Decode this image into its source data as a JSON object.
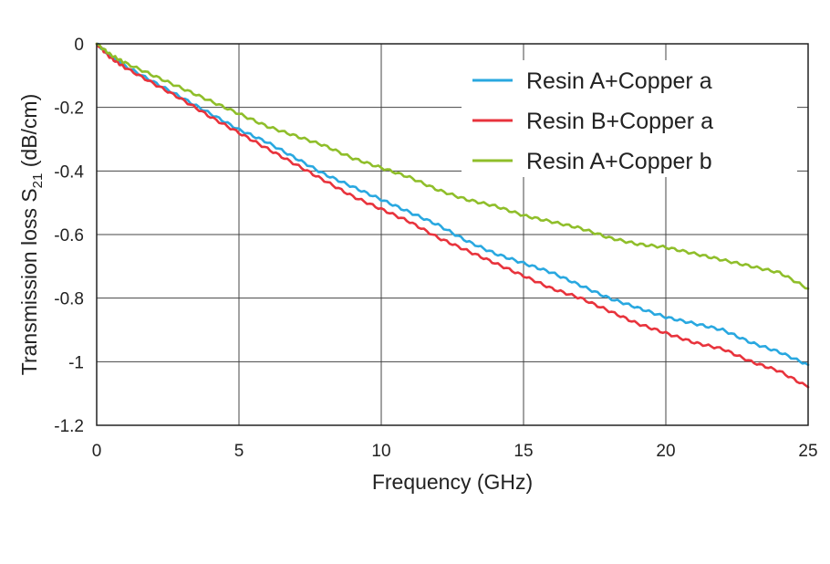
{
  "chart_data": {
    "type": "line",
    "xlabel": "Frequency (GHz)",
    "ylabel": {
      "main": "Transmission loss S",
      "sub": "21",
      "unit": " (dB/cm)"
    },
    "xlim": [
      0,
      25
    ],
    "ylim": [
      -1.2,
      0
    ],
    "xticks": [
      0,
      5,
      10,
      15,
      20,
      25
    ],
    "xtick_labels": [
      "0",
      "5",
      "10",
      "15",
      "20",
      "25"
    ],
    "yticks": [
      0,
      -0.2,
      -0.4,
      -0.6,
      -0.8,
      -1,
      -1.2
    ],
    "ytick_labels": [
      "0",
      "-0.2",
      "-0.4",
      "-0.6",
      "-0.8",
      "-1",
      "-1.2"
    ],
    "grid": true,
    "legend_position": "top-right",
    "series": [
      {
        "name": "Resin A+Copper a",
        "color": "#29a8e0",
        "x": [
          0,
          0.5,
          1,
          2,
          3,
          4,
          5,
          6,
          7,
          8,
          9,
          10,
          11,
          12,
          13,
          14,
          15,
          16,
          17,
          18,
          19,
          20,
          21,
          22,
          23,
          24,
          25
        ],
        "y": [
          0,
          -0.04,
          -0.07,
          -0.12,
          -0.17,
          -0.22,
          -0.27,
          -0.31,
          -0.36,
          -0.41,
          -0.45,
          -0.49,
          -0.53,
          -0.57,
          -0.62,
          -0.66,
          -0.69,
          -0.72,
          -0.76,
          -0.8,
          -0.83,
          -0.86,
          -0.88,
          -0.9,
          -0.94,
          -0.97,
          -1.01
        ]
      },
      {
        "name": "Resin B+Copper a",
        "color": "#e8333c",
        "x": [
          0,
          0.5,
          1,
          2,
          3,
          4,
          5,
          6,
          7,
          8,
          9,
          10,
          11,
          12,
          13,
          14,
          15,
          16,
          17,
          18,
          19,
          20,
          21,
          22,
          23,
          24,
          25
        ],
        "y": [
          0,
          -0.045,
          -0.075,
          -0.125,
          -0.175,
          -0.23,
          -0.28,
          -0.33,
          -0.38,
          -0.43,
          -0.48,
          -0.52,
          -0.56,
          -0.61,
          -0.65,
          -0.69,
          -0.73,
          -0.77,
          -0.8,
          -0.84,
          -0.88,
          -0.91,
          -0.94,
          -0.96,
          -1.0,
          -1.03,
          -1.08
        ]
      },
      {
        "name": "Resin A+Copper b",
        "color": "#8fbe2a",
        "x": [
          0,
          0.5,
          1,
          2,
          3,
          4,
          5,
          6,
          7,
          8,
          9,
          10,
          11,
          12,
          13,
          14,
          15,
          16,
          17,
          18,
          19,
          20,
          21,
          22,
          23,
          24,
          25
        ],
        "y": [
          0,
          -0.035,
          -0.06,
          -0.1,
          -0.14,
          -0.18,
          -0.22,
          -0.26,
          -0.29,
          -0.32,
          -0.36,
          -0.39,
          -0.42,
          -0.46,
          -0.49,
          -0.51,
          -0.54,
          -0.56,
          -0.58,
          -0.61,
          -0.63,
          -0.64,
          -0.66,
          -0.68,
          -0.7,
          -0.72,
          -0.77
        ]
      }
    ]
  }
}
